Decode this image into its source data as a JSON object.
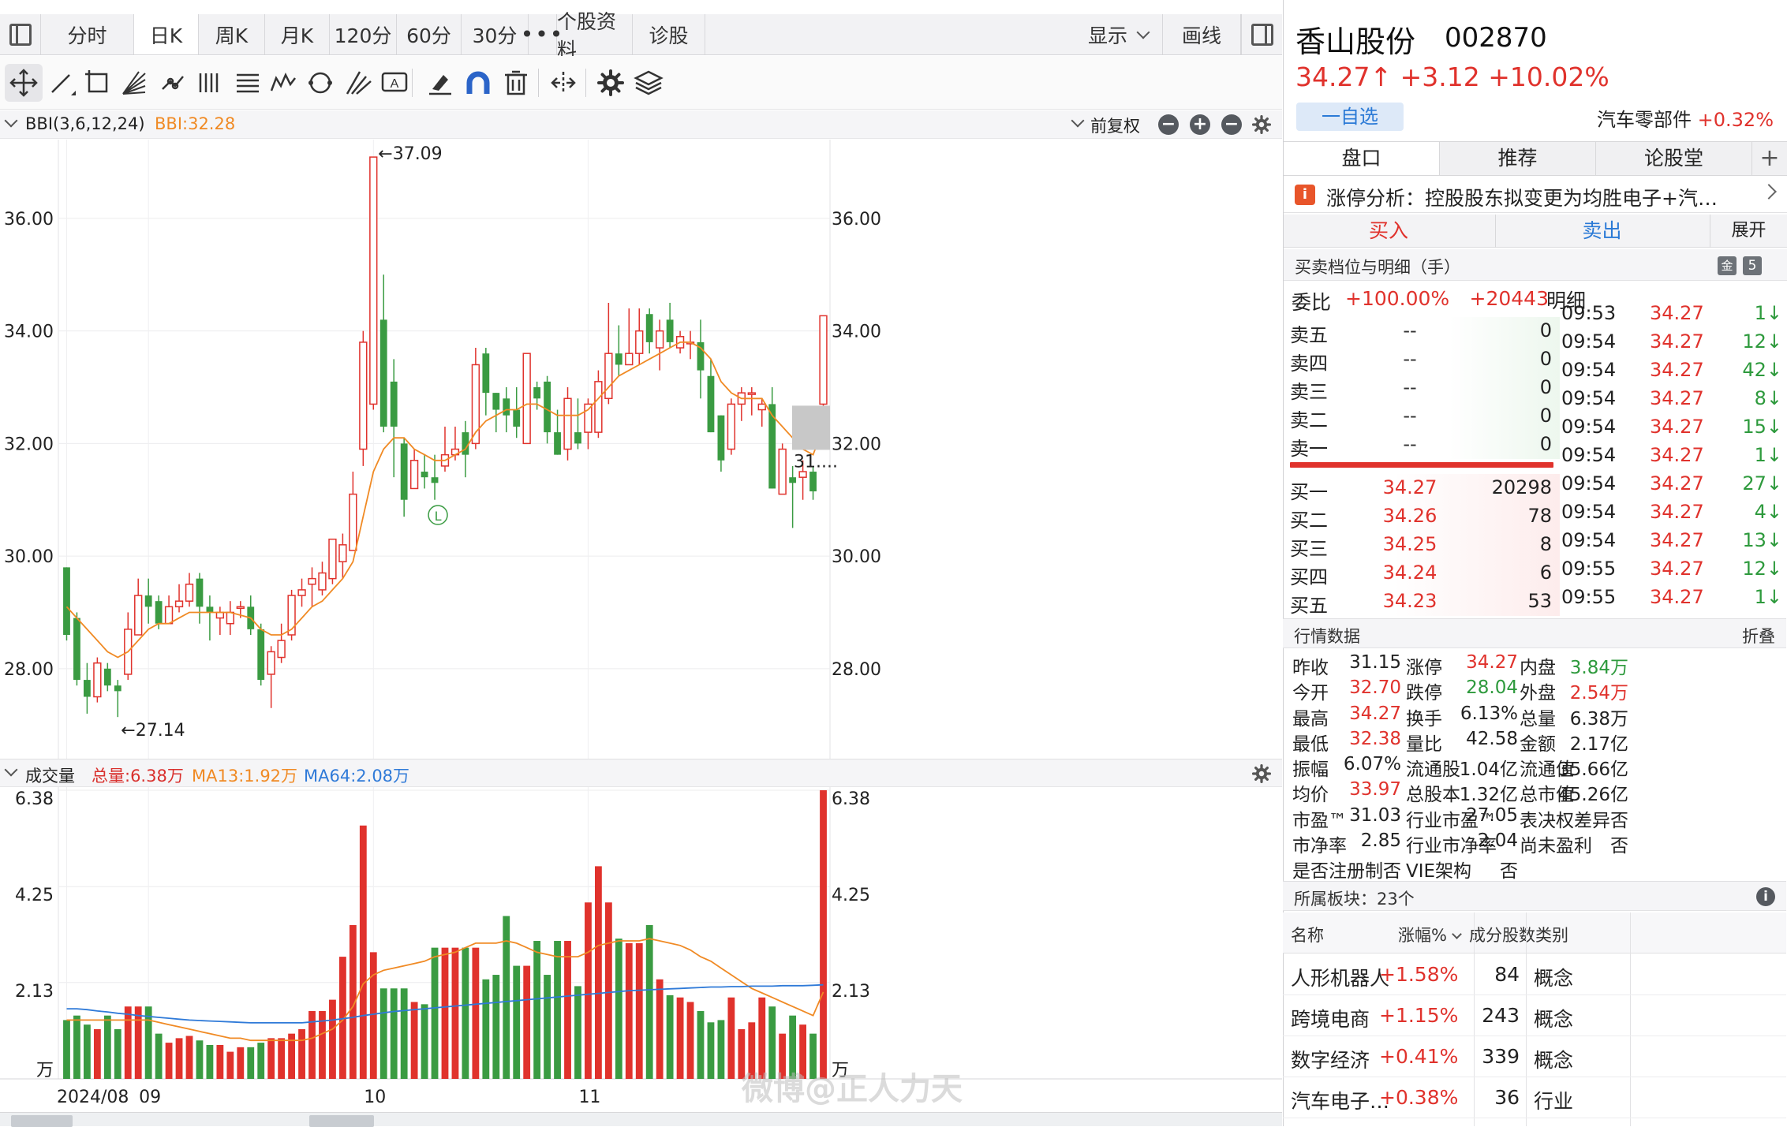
{
  "tabs": {
    "labels": [
      "分时",
      "日K",
      "周K",
      "月K",
      "120分",
      "60分",
      "30分",
      "•••",
      "个股资料",
      "诊股"
    ],
    "active": "日K",
    "display": "显示",
    "draw": "画线"
  },
  "toolbar": {
    "tools": [
      "move-icon",
      "line-icon",
      "rect-icon",
      "fan-icon",
      "channel-icon",
      "gann-icon",
      "fib-icon",
      "wave-icon",
      "cycle-icon",
      "pitchfork-icon",
      "text-icon",
      "eraser-icon",
      "magnet-icon",
      "trash-icon",
      "hide-icon",
      "settings-icon",
      "layers-icon"
    ]
  },
  "indicator": {
    "name": "BBI(3,6,12,24)",
    "value": "BBI:32.28",
    "adjust": "前复权",
    "color": "#f08a24"
  },
  "chart_data": [
    {
      "type": "candlestick",
      "title": "",
      "ylim": [
        26.4,
        37.4
      ],
      "y_ticks": [
        "36.00",
        "34.00",
        "32.00",
        "30.00",
        "28.00"
      ],
      "annotations": {
        "high": "←37.09",
        "low": "←27.14",
        "last_ma": "31....",
        "marker": "L"
      },
      "x_labels": [
        "2024/08",
        "09",
        "10",
        "11"
      ],
      "colors": {
        "up": "#e0322c",
        "down": "#3a9b42",
        "ma": "#f08a24"
      },
      "candles": [
        [
          29.8,
          28.6,
          29.8,
          28.5
        ],
        [
          28.9,
          27.8,
          29.0,
          27.7
        ],
        [
          27.8,
          27.5,
          28.1,
          27.2
        ],
        [
          27.5,
          28.1,
          28.2,
          27.4
        ],
        [
          28.0,
          27.7,
          28.1,
          27.6
        ],
        [
          27.7,
          27.6,
          27.8,
          27.14
        ],
        [
          27.9,
          28.7,
          29.0,
          27.8
        ],
        [
          28.6,
          29.3,
          29.6,
          28.6
        ],
        [
          29.3,
          29.1,
          29.6,
          28.8
        ],
        [
          29.2,
          28.8,
          29.3,
          28.7
        ],
        [
          28.8,
          29.1,
          29.3,
          28.8
        ],
        [
          29.1,
          29.2,
          29.5,
          29.0
        ],
        [
          29.2,
          29.5,
          29.7,
          29.1
        ],
        [
          29.6,
          29.1,
          29.7,
          28.8
        ],
        [
          29.1,
          29.0,
          29.3,
          28.5
        ],
        [
          28.9,
          29.0,
          29.1,
          28.6
        ],
        [
          28.8,
          29.0,
          29.2,
          28.6
        ],
        [
          29.1,
          29.1,
          29.2,
          28.9
        ],
        [
          29.1,
          28.7,
          29.3,
          28.6
        ],
        [
          28.7,
          27.8,
          28.8,
          27.7
        ],
        [
          27.9,
          28.3,
          28.4,
          27.3
        ],
        [
          28.2,
          28.5,
          28.8,
          28.1
        ],
        [
          28.6,
          29.3,
          29.4,
          28.5
        ],
        [
          29.3,
          29.4,
          29.6,
          29.1
        ],
        [
          29.5,
          29.6,
          29.8,
          29.1
        ],
        [
          29.4,
          29.7,
          29.9,
          29.3
        ],
        [
          29.6,
          30.3,
          30.3,
          29.5
        ],
        [
          29.9,
          30.2,
          30.4,
          29.6
        ],
        [
          30.1,
          31.1,
          31.5,
          30.1
        ],
        [
          31.9,
          33.8,
          34.0,
          31.6
        ],
        [
          32.7,
          37.09,
          37.09,
          32.6
        ],
        [
          34.2,
          32.3,
          35.0,
          32.2
        ],
        [
          33.1,
          32.3,
          33.5,
          31.4
        ],
        [
          32.0,
          31.0,
          32.1,
          30.7
        ],
        [
          31.2,
          31.7,
          31.9,
          31.2
        ],
        [
          31.5,
          31.4,
          31.8,
          31.2
        ],
        [
          31.4,
          31.3,
          31.8,
          31.0
        ],
        [
          31.6,
          31.8,
          32.3,
          31.5
        ],
        [
          31.8,
          31.9,
          32.3,
          31.7
        ],
        [
          32.2,
          31.8,
          32.4,
          31.4
        ],
        [
          32.0,
          33.4,
          33.7,
          31.9
        ],
        [
          33.6,
          32.9,
          33.7,
          32.5
        ],
        [
          32.9,
          32.6,
          32.9,
          32.2
        ],
        [
          32.8,
          32.5,
          33.0,
          32.2
        ],
        [
          32.6,
          32.3,
          33.0,
          32.1
        ],
        [
          32.0,
          33.6,
          33.6,
          32.0
        ],
        [
          33.0,
          32.8,
          33.1,
          32.6
        ],
        [
          33.1,
          32.2,
          33.2,
          32.0
        ],
        [
          32.2,
          31.8,
          32.6,
          31.8
        ],
        [
          31.9,
          32.8,
          33.0,
          31.7
        ],
        [
          32.2,
          32.0,
          32.8,
          31.9
        ],
        [
          32.2,
          32.7,
          32.8,
          31.9
        ],
        [
          32.2,
          33.1,
          33.3,
          32.1
        ],
        [
          32.8,
          33.6,
          34.5,
          32.7
        ],
        [
          33.6,
          33.4,
          34.1,
          33.2
        ],
        [
          33.4,
          33.6,
          34.4,
          33.4
        ],
        [
          33.6,
          34.0,
          34.4,
          33.4
        ],
        [
          34.3,
          33.8,
          34.4,
          33.6
        ],
        [
          33.7,
          34.0,
          34.2,
          33.3
        ],
        [
          34.2,
          33.8,
          34.5,
          33.7
        ],
        [
          33.7,
          33.9,
          34.0,
          33.6
        ],
        [
          33.8,
          33.8,
          34.0,
          33.5
        ],
        [
          33.8,
          33.3,
          34.2,
          32.8
        ],
        [
          33.2,
          32.2,
          33.5,
          32.2
        ],
        [
          32.5,
          31.7,
          32.5,
          31.5
        ],
        [
          31.9,
          32.7,
          32.8,
          31.8
        ],
        [
          32.7,
          32.9,
          33.0,
          32.4
        ],
        [
          32.9,
          32.9,
          33.0,
          32.5
        ],
        [
          32.6,
          32.7,
          32.8,
          32.3
        ],
        [
          32.7,
          31.2,
          33.0,
          31.2
        ],
        [
          31.1,
          31.9,
          32.0,
          31.1
        ],
        [
          31.4,
          31.3,
          31.6,
          30.5
        ],
        [
          31.4,
          31.5,
          31.7,
          31.0
        ],
        [
          31.5,
          31.15,
          31.6,
          31.0
        ],
        [
          32.7,
          34.27,
          34.27,
          32.38
        ]
      ],
      "ma": [
        29.1,
        28.9,
        28.7,
        28.5,
        28.3,
        28.2,
        28.3,
        28.5,
        28.7,
        28.8,
        28.8,
        28.9,
        29.0,
        29.0,
        29.0,
        29.0,
        29.0,
        28.95,
        28.9,
        28.7,
        28.6,
        28.6,
        28.7,
        28.9,
        29.1,
        29.2,
        29.4,
        29.6,
        29.9,
        30.7,
        31.5,
        31.9,
        32.1,
        32.1,
        31.9,
        31.8,
        31.7,
        31.7,
        31.8,
        31.9,
        32.2,
        32.4,
        32.5,
        32.6,
        32.6,
        32.7,
        32.7,
        32.6,
        32.5,
        32.5,
        32.5,
        32.6,
        32.8,
        33.0,
        33.2,
        33.3,
        33.4,
        33.5,
        33.6,
        33.7,
        33.8,
        33.8,
        33.7,
        33.5,
        33.1,
        32.9,
        32.8,
        32.8,
        32.8,
        32.5,
        32.3,
        32.1,
        31.9,
        31.8,
        32.28
      ]
    },
    {
      "type": "bar",
      "title": "成交量",
      "ylim": [
        0,
        6.38
      ],
      "y_ticks": [
        "6.38",
        "4.25",
        "2.13"
      ],
      "unit": "万",
      "summary": {
        "total": "总量:6.38万",
        "ma13": "MA13:1.92万",
        "ma64": "MA64:2.08万"
      },
      "colors": {
        "up": "#e0322c",
        "down": "#3a9b42",
        "ma13": "#f08a24",
        "ma64": "#2f7ad8"
      },
      "values": [
        1.3,
        1.4,
        1.2,
        1.1,
        1.4,
        1.1,
        1.6,
        1.6,
        1.6,
        1.0,
        0.8,
        0.9,
        0.95,
        0.85,
        0.75,
        0.75,
        0.6,
        0.7,
        0.7,
        0.8,
        0.9,
        0.9,
        1.0,
        1.1,
        1.5,
        1.5,
        1.75,
        2.7,
        3.4,
        5.6,
        2.8,
        2.0,
        2.0,
        2.0,
        1.7,
        1.65,
        2.9,
        2.9,
        2.9,
        2.9,
        2.9,
        2.2,
        2.3,
        3.6,
        2.5,
        2.5,
        3.05,
        2.3,
        3.05,
        3.05,
        2.05,
        3.9,
        4.7,
        3.9,
        3.1,
        3.0,
        3.0,
        3.4,
        2.2,
        1.85,
        1.8,
        1.7,
        1.5,
        1.25,
        1.3,
        1.8,
        1.1,
        1.25,
        1.8,
        1.6,
        1.0,
        1.4,
        1.2,
        1.0,
        6.38
      ],
      "ma13": [
        1.3,
        1.3,
        1.3,
        1.3,
        1.3,
        1.3,
        1.3,
        1.3,
        1.3,
        1.25,
        1.2,
        1.15,
        1.1,
        1.05,
        1.0,
        0.95,
        0.9,
        0.9,
        0.85,
        0.85,
        0.85,
        0.85,
        0.85,
        0.85,
        0.9,
        1.0,
        1.1,
        1.3,
        1.6,
        2.1,
        2.3,
        2.4,
        2.45,
        2.5,
        2.55,
        2.6,
        2.7,
        2.75,
        2.8,
        2.9,
        3.0,
        3.0,
        3.0,
        3.05,
        3.0,
        2.9,
        2.8,
        2.75,
        2.7,
        2.7,
        2.7,
        2.8,
        2.95,
        3.0,
        3.05,
        3.05,
        3.05,
        3.1,
        3.05,
        3.0,
        2.95,
        2.85,
        2.7,
        2.6,
        2.45,
        2.3,
        2.15,
        2.0,
        1.9,
        1.8,
        1.7,
        1.6,
        1.5,
        1.4,
        1.92
      ],
      "ma64": [
        1.55,
        1.55,
        1.53,
        1.5,
        1.48,
        1.45,
        1.43,
        1.4,
        1.38,
        1.36,
        1.34,
        1.32,
        1.3,
        1.29,
        1.28,
        1.27,
        1.26,
        1.25,
        1.24,
        1.24,
        1.24,
        1.24,
        1.24,
        1.24,
        1.26,
        1.28,
        1.3,
        1.33,
        1.36,
        1.4,
        1.43,
        1.46,
        1.49,
        1.51,
        1.53,
        1.55,
        1.57,
        1.59,
        1.61,
        1.63,
        1.65,
        1.67,
        1.69,
        1.71,
        1.73,
        1.75,
        1.77,
        1.79,
        1.81,
        1.83,
        1.85,
        1.87,
        1.89,
        1.91,
        1.93,
        1.95,
        1.96,
        1.97,
        1.98,
        1.99,
        2.0,
        2.01,
        2.02,
        2.03,
        2.03,
        2.04,
        2.04,
        2.05,
        2.05,
        2.05,
        2.06,
        2.06,
        2.06,
        2.07,
        2.08
      ]
    }
  ],
  "stock": {
    "name": "香山股份",
    "code": "002870",
    "price_line": "34.27↑ +3.12 +10.02%",
    "watch": "一自选",
    "industry": "汽车零部件",
    "industry_pct": "+0.32%"
  },
  "panel_tabs": [
    "盘口",
    "推荐",
    "论股堂"
  ],
  "limit": {
    "icon": "i",
    "text": "涨停分析：控股股东拟变更为均胜电子+汽…"
  },
  "trade": {
    "buy": "买入",
    "sell": "卖出",
    "expand": "展开"
  },
  "book": {
    "title": "买卖档位与明细（手）",
    "ico1": "金",
    "ico2": "5",
    "ratio_label": "委比",
    "ratio_pct": "+100.00%",
    "ratio_num": "+20443",
    "detail_label": "明细",
    "asks": [
      {
        "label": "卖五",
        "price": "--",
        "vol": "0"
      },
      {
        "label": "卖四",
        "price": "--",
        "vol": "0"
      },
      {
        "label": "卖三",
        "price": "--",
        "vol": "0"
      },
      {
        "label": "卖二",
        "price": "--",
        "vol": "0"
      },
      {
        "label": "卖一",
        "price": "--",
        "vol": "0"
      }
    ],
    "bids": [
      {
        "label": "买一",
        "price": "34.27",
        "vol": "20298"
      },
      {
        "label": "买二",
        "price": "34.26",
        "vol": "78"
      },
      {
        "label": "买三",
        "price": "34.25",
        "vol": "8"
      },
      {
        "label": "买四",
        "price": "34.24",
        "vol": "6"
      },
      {
        "label": "买五",
        "price": "34.23",
        "vol": "53"
      }
    ]
  },
  "ticks": [
    {
      "t": "09:53",
      "p": "34.27",
      "v": "1↓",
      "c": "g"
    },
    {
      "t": "09:54",
      "p": "34.27",
      "v": "12↓",
      "c": "g"
    },
    {
      "t": "09:54",
      "p": "34.27",
      "v": "42↓",
      "c": "g"
    },
    {
      "t": "09:54",
      "p": "34.27",
      "v": "8↓",
      "c": "g"
    },
    {
      "t": "09:54",
      "p": "34.27",
      "v": "15↓",
      "c": "g"
    },
    {
      "t": "09:54",
      "p": "34.27",
      "v": "1↓",
      "c": "g"
    },
    {
      "t": "09:54",
      "p": "34.27",
      "v": "27↓",
      "c": "g"
    },
    {
      "t": "09:54",
      "p": "34.27",
      "v": "4↓",
      "c": "g"
    },
    {
      "t": "09:54",
      "p": "34.27",
      "v": "13↓",
      "c": "g"
    },
    {
      "t": "09:55",
      "p": "34.27",
      "v": "12↓",
      "c": "g"
    },
    {
      "t": "09:55",
      "p": "34.27",
      "v": "1↓",
      "c": "g"
    }
  ],
  "market": {
    "title": "行情数据",
    "fold": "折叠",
    "rows": [
      [
        [
          "昨收",
          "31.15",
          "black"
        ],
        [
          "涨停",
          "34.27",
          "red"
        ],
        [
          "内盘",
          "3.84万",
          "green"
        ]
      ],
      [
        [
          "今开",
          "32.70",
          "red"
        ],
        [
          "跌停",
          "28.04",
          "green"
        ],
        [
          "外盘",
          "2.54万",
          "red"
        ]
      ],
      [
        [
          "最高",
          "34.27",
          "red"
        ],
        [
          "换手",
          "6.13%",
          "black"
        ],
        [
          "总量",
          "6.38万",
          "black"
        ]
      ],
      [
        [
          "最低",
          "32.38",
          "red"
        ],
        [
          "量比",
          "42.58",
          "black"
        ],
        [
          "金额",
          "2.17亿",
          "black"
        ]
      ],
      [
        [
          "振幅",
          "6.07%",
          "black"
        ],
        [
          "流通股",
          "1.04亿",
          "black"
        ],
        [
          "流通值",
          "35.66亿",
          "black"
        ]
      ],
      [
        [
          "均价",
          "33.97",
          "red"
        ],
        [
          "总股本",
          "1.32亿",
          "black"
        ],
        [
          "总市值",
          "45.26亿",
          "black"
        ]
      ],
      [
        [
          "市盈™",
          "31.03",
          "black"
        ],
        [
          "行业市盈™",
          "27.05",
          "black"
        ],
        [
          "表决权差异",
          "否",
          "black"
        ]
      ],
      [
        [
          "市净率",
          "2.85",
          "black"
        ],
        [
          "行业市净率",
          "2.04",
          "black"
        ],
        [
          "尚未盈利",
          "否",
          "black"
        ]
      ],
      [
        [
          "是否注册制",
          "否",
          "black"
        ],
        [
          "VIE架构",
          "否",
          "black"
        ],
        [
          "",
          "",
          "black"
        ]
      ]
    ]
  },
  "sectors": {
    "title": "所属板块：23个",
    "cols": [
      "名称",
      "涨幅%",
      "成分股数",
      "类别"
    ],
    "rows": [
      {
        "name": "人形机器人",
        "pct": "+1.58%",
        "count": "84",
        "type": "概念"
      },
      {
        "name": "跨境电商",
        "pct": "+1.15%",
        "count": "243",
        "type": "概念"
      },
      {
        "name": "数字经济",
        "pct": "+0.41%",
        "count": "339",
        "type": "概念"
      },
      {
        "name": "汽车电子…",
        "pct": "+0.38%",
        "count": "36",
        "type": "行业"
      }
    ]
  },
  "watermark": "微博@正人力天"
}
